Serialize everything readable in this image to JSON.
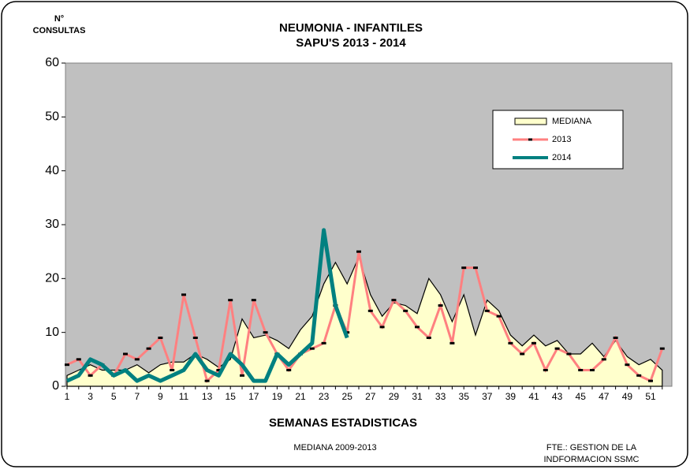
{
  "chart_data": {
    "type": "line",
    "title": [
      "NEUMONIA  -  INFANTILES",
      "SAPU'S   2013 - 2014"
    ],
    "y_label": [
      "N°",
      "CONSULTAS"
    ],
    "x_label": "SEMANAS ESTADISTICAS",
    "notes": [
      "MEDIANA 2009-2013",
      [
        "FTE.: GESTION DE LA",
        "INDFORMACION SSMC"
      ]
    ],
    "categories": [
      1,
      null,
      3,
      null,
      5,
      null,
      7,
      null,
      9,
      null,
      11,
      null,
      13,
      null,
      15,
      null,
      17,
      null,
      19,
      null,
      21,
      null,
      23,
      null,
      25,
      null,
      27,
      null,
      29,
      null,
      31,
      null,
      33,
      null,
      35,
      null,
      37,
      null,
      39,
      null,
      41,
      null,
      43,
      null,
      45,
      null,
      47,
      null,
      49,
      null,
      51,
      null
    ],
    "series": [
      {
        "name": "MEDIANA",
        "style": "area",
        "color": "#ffffcc",
        "values": [
          2,
          3,
          4,
          3,
          3,
          3,
          4,
          2.5,
          4,
          4.5,
          4.5,
          6,
          5,
          3.5,
          5,
          12.5,
          9,
          9.5,
          8.5,
          7,
          10.5,
          13,
          19,
          23,
          19,
          24,
          17,
          13,
          15.5,
          15,
          13.5,
          20,
          17,
          12,
          17,
          9.5,
          16,
          14,
          9.5,
          7.5,
          9.5,
          7.5,
          8.5,
          6,
          6,
          8,
          5.5,
          8.5,
          5.5,
          4,
          5,
          3
        ]
      },
      {
        "name": "2013",
        "style": "marked-line",
        "color": "#ff8080",
        "values": [
          4,
          5,
          2,
          4,
          2,
          6,
          5,
          7,
          9,
          3,
          17,
          9,
          1,
          3,
          16,
          2,
          16,
          10,
          6,
          3,
          6,
          7,
          8,
          15,
          10,
          25,
          14,
          11,
          16,
          14,
          11,
          9,
          15,
          8,
          22,
          22,
          14,
          13,
          8,
          6,
          8,
          3,
          7,
          6,
          3,
          3,
          5,
          9,
          4,
          2,
          1,
          7
        ]
      },
      {
        "name": "2014",
        "style": "thick-line",
        "color": "#008080",
        "values": [
          1,
          2,
          5,
          4,
          2,
          3,
          1,
          2,
          1,
          2,
          3,
          6,
          3,
          2,
          6,
          4,
          1,
          1,
          6,
          4,
          6,
          8,
          29,
          15,
          9,
          null,
          null,
          null,
          null,
          null,
          null,
          null,
          null,
          null,
          null,
          null,
          null,
          null,
          null,
          null,
          null,
          null,
          null,
          null,
          null,
          null,
          null,
          null,
          null,
          null,
          null,
          null
        ]
      }
    ],
    "ylim": [
      0,
      60
    ],
    "yticks": [
      0,
      10,
      20,
      30,
      40,
      50,
      60
    ],
    "plot_color": "#c0c0c0"
  }
}
